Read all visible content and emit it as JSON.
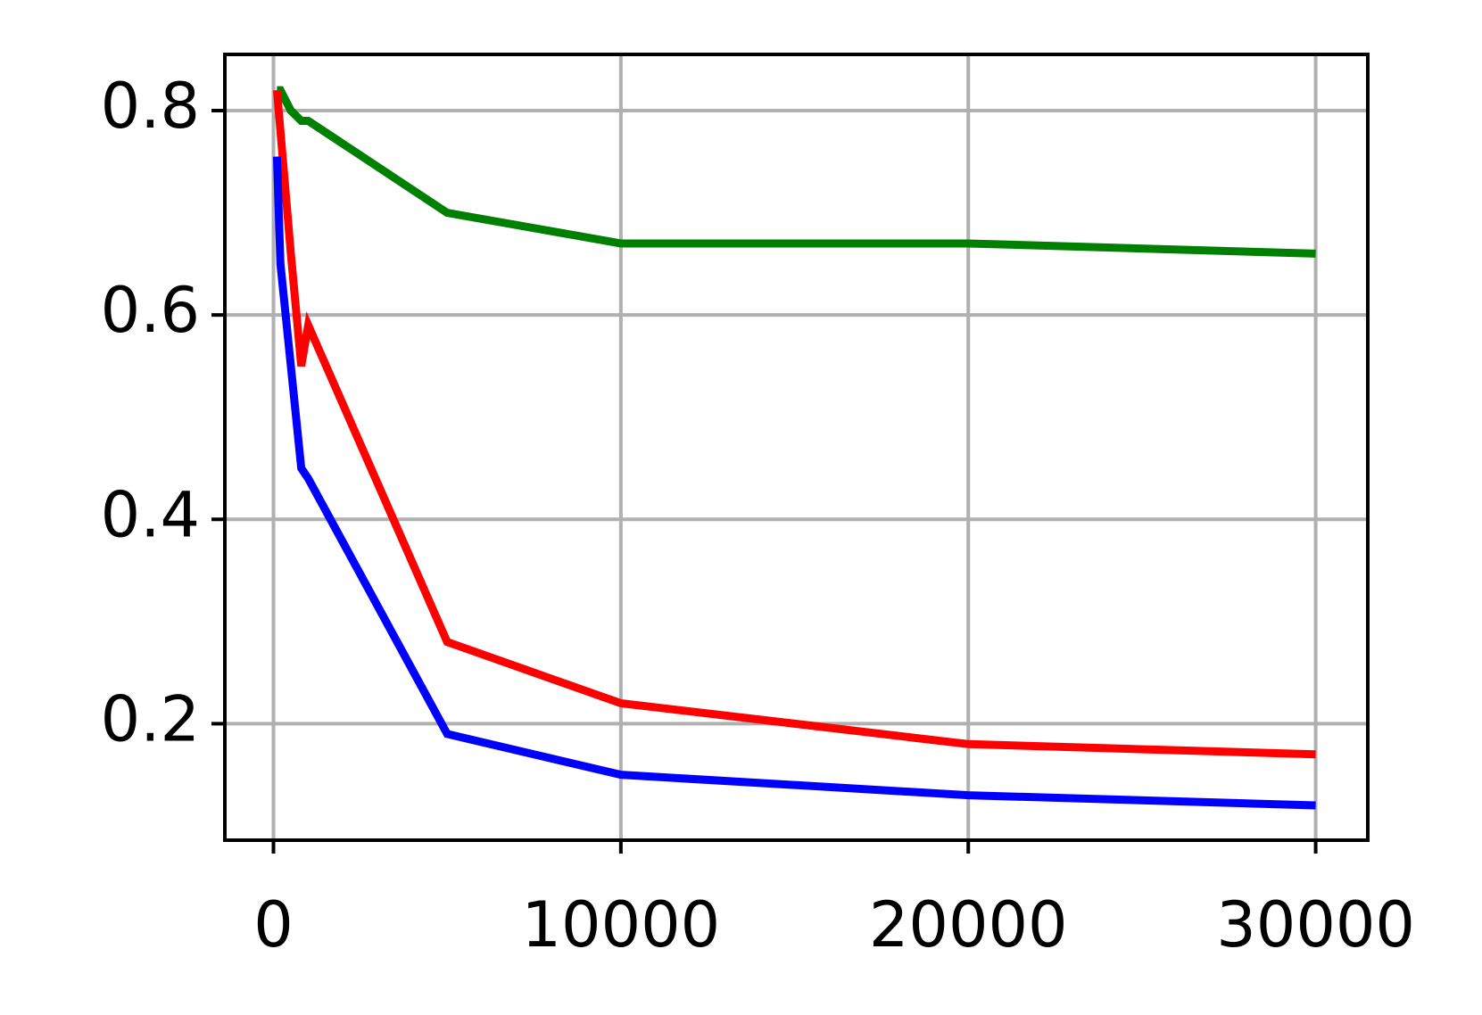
{
  "chart_data": {
    "type": "line",
    "x": [
      100,
      200,
      500,
      800,
      1000,
      5000,
      10000,
      20000,
      30000
    ],
    "series": [
      {
        "color": "#008000",
        "values": [
          0.82,
          0.82,
          0.8,
          0.79,
          0.79,
          0.7,
          0.67,
          0.67,
          0.66
        ]
      },
      {
        "color": "#ff0000",
        "values": [
          0.82,
          0.78,
          0.66,
          0.55,
          0.59,
          0.28,
          0.22,
          0.18,
          0.17
        ]
      },
      {
        "color": "#0000ff",
        "values": [
          0.755,
          0.65,
          0.55,
          0.45,
          0.44,
          0.19,
          0.15,
          0.13,
          0.12
        ]
      }
    ],
    "xlim": [
      -1400,
      31500
    ],
    "xticks": [
      0,
      10000,
      20000,
      30000
    ],
    "ylim": [
      0.086,
      0.855
    ],
    "yticks": [
      0.2,
      0.4,
      0.6,
      0.8
    ],
    "grid": true
  }
}
